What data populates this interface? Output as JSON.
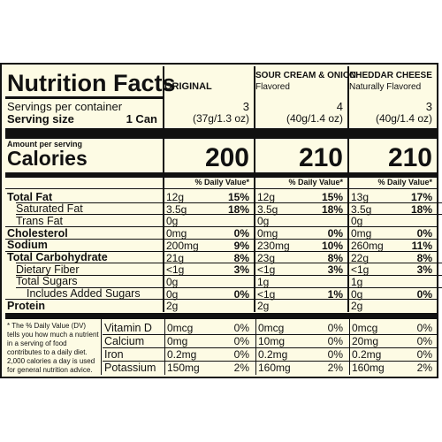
{
  "header": {
    "title": "Nutrition Facts",
    "columns": [
      {
        "name": "ORIGINAL",
        "sub": "",
        "servings": "3",
        "size": "(37g/1.3 oz)",
        "calories": "200"
      },
      {
        "name": "SOUR CREAM & ONION",
        "sub": "Flavored",
        "servings": "4",
        "size": "(40g/1.4 oz)",
        "calories": "210"
      },
      {
        "name": "CHEDDAR CHEESE",
        "sub": "Naturally Flavored",
        "servings": "3",
        "size": "(40g/1.4 oz)",
        "calories": "210"
      }
    ]
  },
  "labels": {
    "servings_per_container": "Servings per container",
    "serving_size": "Serving size",
    "serving_size_value": "1 Can",
    "amount_per_serving": "Amount per serving",
    "calories": "Calories",
    "dv_header": "% Daily Value*"
  },
  "nutrients": [
    {
      "label": "Total Fat",
      "bold": true,
      "indent": 0,
      "values": [
        [
          "12g",
          "15%"
        ],
        [
          "12g",
          "15%"
        ],
        [
          "13g",
          "17%"
        ]
      ]
    },
    {
      "label": "Saturated Fat",
      "bold": false,
      "indent": 1,
      "values": [
        [
          "3.5g",
          "18%"
        ],
        [
          "3.5g",
          "18%"
        ],
        [
          "3.5g",
          "18%"
        ]
      ]
    },
    {
      "label": "Trans Fat",
      "bold": false,
      "indent": 1,
      "values": [
        [
          "0g",
          ""
        ],
        [
          "0g",
          ""
        ],
        [
          "0g",
          ""
        ]
      ]
    },
    {
      "label": "Cholesterol",
      "bold": true,
      "indent": 0,
      "values": [
        [
          "0mg",
          "0%"
        ],
        [
          "0mg",
          "0%"
        ],
        [
          "0mg",
          "0%"
        ]
      ]
    },
    {
      "label": "Sodium",
      "bold": true,
      "indent": 0,
      "values": [
        [
          "200mg",
          "9%"
        ],
        [
          "230mg",
          "10%"
        ],
        [
          "260mg",
          "11%"
        ]
      ]
    },
    {
      "label": "Total Carbohydrate",
      "bold": true,
      "indent": 0,
      "values": [
        [
          "21g",
          "8%"
        ],
        [
          "23g",
          "8%"
        ],
        [
          "22g",
          "8%"
        ]
      ]
    },
    {
      "label": "Dietary Fiber",
      "bold": false,
      "indent": 1,
      "values": [
        [
          "<1g",
          "3%"
        ],
        [
          "<1g",
          "3%"
        ],
        [
          "<1g",
          "3%"
        ]
      ]
    },
    {
      "label": "Total Sugars",
      "bold": false,
      "indent": 1,
      "values": [
        [
          "0g",
          ""
        ],
        [
          "1g",
          ""
        ],
        [
          "1g",
          ""
        ]
      ]
    },
    {
      "label": "Includes Added Sugars",
      "bold": false,
      "indent": 2,
      "values": [
        [
          "0g",
          "0%"
        ],
        [
          "<1g",
          "1%"
        ],
        [
          "0g",
          "0%"
        ]
      ]
    },
    {
      "label": "Protein",
      "bold": true,
      "indent": 0,
      "values": [
        [
          "2g",
          ""
        ],
        [
          "2g",
          ""
        ],
        [
          "2g",
          ""
        ]
      ]
    }
  ],
  "vitamins": [
    {
      "label": "Vitamin D",
      "values": [
        [
          "0mcg",
          "0%"
        ],
        [
          "0mcg",
          "0%"
        ],
        [
          "0mcg",
          "0%"
        ]
      ]
    },
    {
      "label": "Calcium",
      "values": [
        [
          "0mg",
          "0%"
        ],
        [
          "10mg",
          "0%"
        ],
        [
          "20mg",
          "0%"
        ]
      ]
    },
    {
      "label": "Iron",
      "values": [
        [
          "0.2mg",
          "0%"
        ],
        [
          "0.2mg",
          "0%"
        ],
        [
          "0.2mg",
          "0%"
        ]
      ]
    },
    {
      "label": "Potassium",
      "values": [
        [
          "150mg",
          "2%"
        ],
        [
          "160mg",
          "2%"
        ],
        [
          "160mg",
          "2%"
        ]
      ]
    }
  ],
  "footnote": "* The % Daily Value (DV) tells you how much a nutrient in a serving of food contributes to a daily diet. 2,000 calories a day is used for general nutrition advice."
}
